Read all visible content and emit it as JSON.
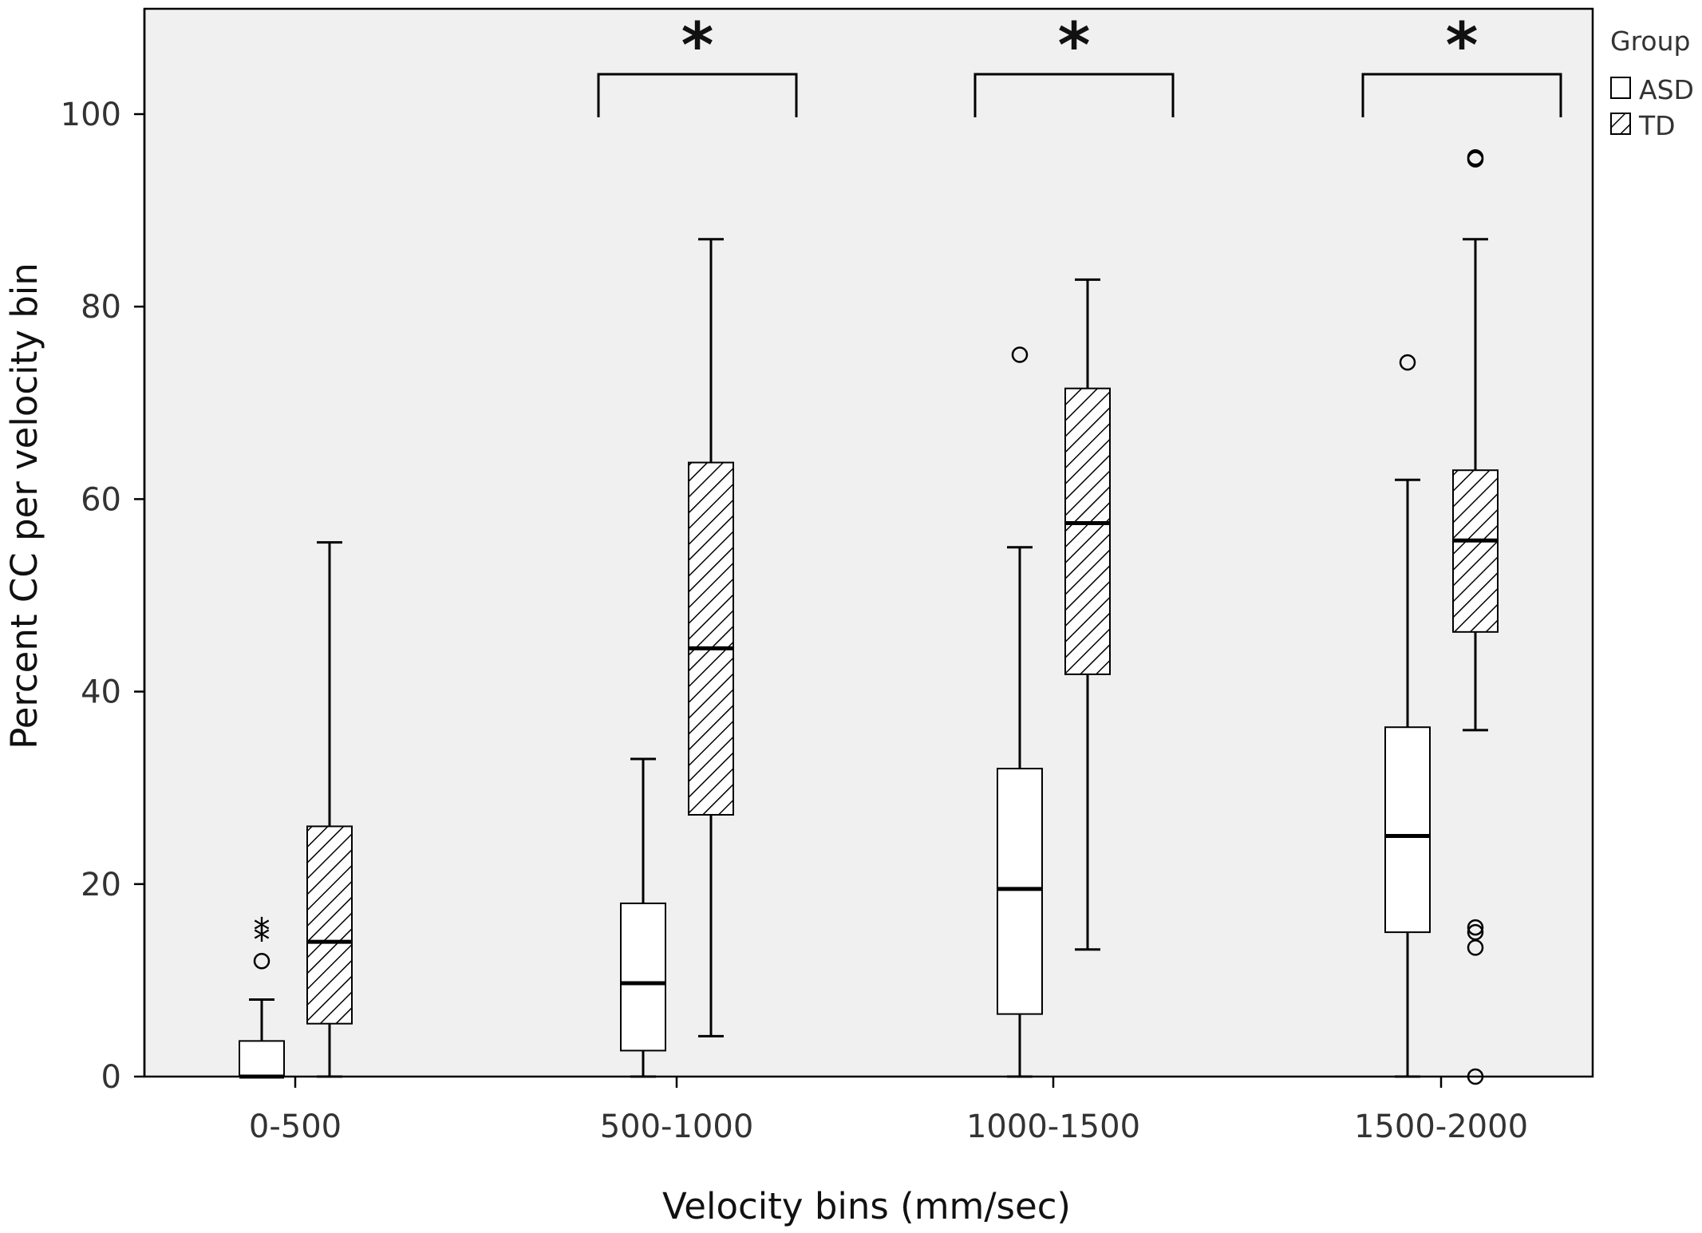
{
  "chart_data": {
    "type": "box",
    "title": "",
    "xlabel": "Velocity bins (mm/sec)",
    "ylabel": "Percent CC per velocity bin",
    "ylim": [
      0,
      110
    ],
    "yticks": [
      0,
      20,
      40,
      60,
      80,
      100
    ],
    "categories": [
      "0-500",
      "500-1000",
      "1000-1500",
      "1500-2000"
    ],
    "legend": {
      "title": "Group",
      "position": "right",
      "entries": [
        "ASD",
        "TD"
      ]
    },
    "grid": false,
    "series": [
      {
        "name": "ASD",
        "fill": "#ffffff",
        "boxes": [
          {
            "category": "0-500",
            "whisker_low": 0,
            "q1": 0,
            "median": 0,
            "q3": 3.7,
            "whisker_high": 8,
            "outliers": [
              12
            ],
            "extremes": [
              14.5,
              15.5
            ]
          },
          {
            "category": "500-1000",
            "whisker_low": 0,
            "q1": 2.7,
            "median": 9.7,
            "q3": 18,
            "whisker_high": 33,
            "outliers": [],
            "extremes": []
          },
          {
            "category": "1000-1500",
            "whisker_low": 0,
            "q1": 6.5,
            "median": 19.5,
            "q3": 32,
            "whisker_high": 55,
            "outliers": [
              75
            ],
            "extremes": []
          },
          {
            "category": "1500-2000",
            "whisker_low": 0,
            "q1": 15,
            "median": 25,
            "q3": 36.3,
            "whisker_high": 62,
            "outliers": [
              74.2
            ],
            "extremes": []
          }
        ]
      },
      {
        "name": "TD",
        "fill": "hatched",
        "boxes": [
          {
            "category": "0-500",
            "whisker_low": 0,
            "q1": 5.5,
            "median": 14,
            "q3": 26,
            "whisker_high": 55.5,
            "outliers": [],
            "extremes": []
          },
          {
            "category": "500-1000",
            "whisker_low": 4.2,
            "q1": 27.2,
            "median": 44.5,
            "q3": 63.8,
            "whisker_high": 87,
            "outliers": [],
            "extremes": []
          },
          {
            "category": "1000-1500",
            "whisker_low": 13.2,
            "q1": 41.8,
            "median": 57.5,
            "q3": 71.5,
            "whisker_high": 82.8,
            "outliers": [],
            "extremes": []
          },
          {
            "category": "1500-2000",
            "whisker_low": 36,
            "q1": 46.2,
            "median": 55.7,
            "q3": 63,
            "whisker_high": 87,
            "outliers": [
              95.5,
              95.3,
              15.5,
              15,
              13.4,
              0
            ],
            "extremes": []
          }
        ]
      }
    ],
    "annotations": [
      {
        "category": "500-1000",
        "label": "*"
      },
      {
        "category": "1000-1500",
        "label": "*"
      },
      {
        "category": "1500-2000",
        "label": "*"
      }
    ],
    "colors": {
      "plot_background": "#f0f0f0",
      "stroke": "#000000"
    }
  }
}
